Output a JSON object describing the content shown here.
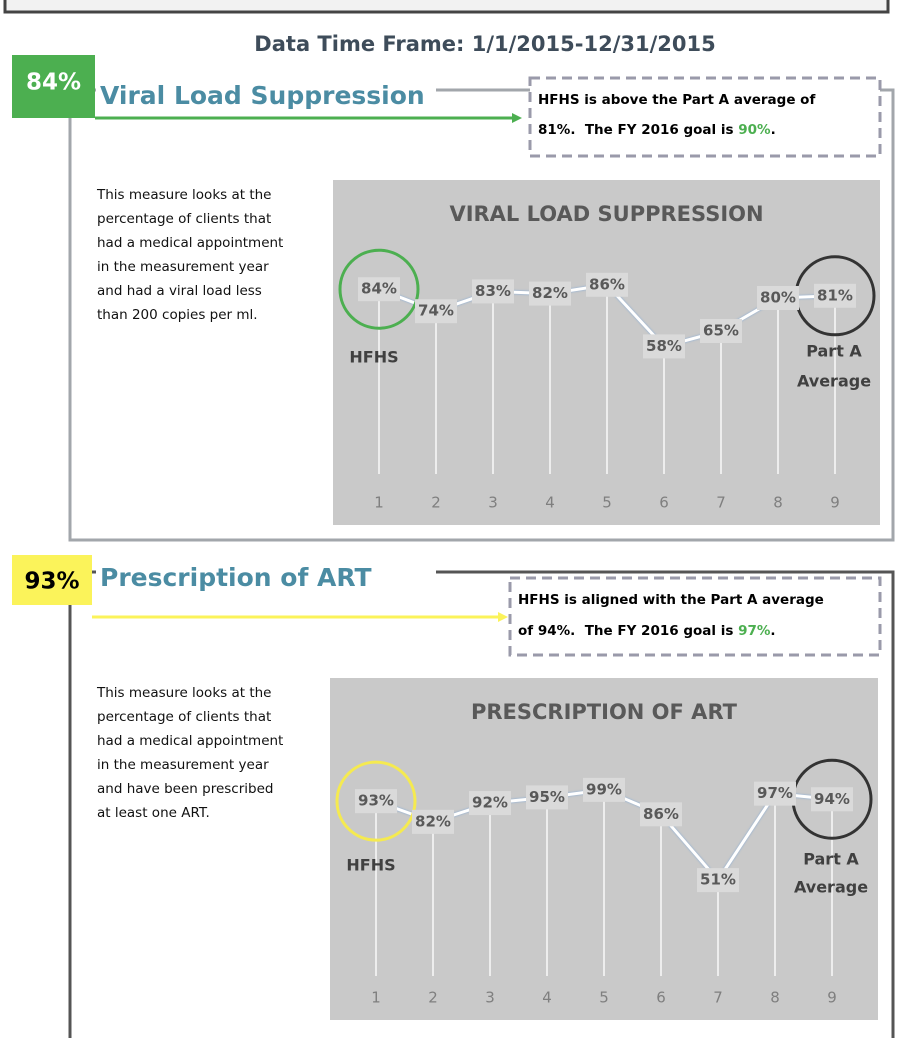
{
  "header": {
    "time_frame": "Data Time Frame: 1/1/2015-12/31/2015"
  },
  "sections": [
    {
      "badge": "84%",
      "badge_color": "#4caf50",
      "badge_text_color": "#ffffff",
      "heading": "Viral Load Suppression",
      "callout": {
        "line1": "HFHS is above the Part A average of",
        "line2": "81%.  The FY 2016 goal is ",
        "goal": "90%",
        "end": "."
      },
      "description": [
        "This measure looks at the",
        "percentage of clients that",
        "had a medical appointment",
        "in the measurement year",
        "and had a viral load less",
        "than 200 copies per ml."
      ],
      "chart": {
        "type": "line",
        "title": "VIRAL LOAD SUPPRESSION",
        "categories": [
          "1",
          "2",
          "3",
          "4",
          "5",
          "6",
          "7",
          "8",
          "9"
        ],
        "values": [
          84,
          74,
          83,
          82,
          86,
          58,
          65,
          80,
          81
        ],
        "value_labels": [
          "84%",
          "74%",
          "83%",
          "82%",
          "86%",
          "58%",
          "65%",
          "80%",
          "81%"
        ],
        "ylim": [
          0,
          100
        ],
        "first_label": "HFHS",
        "last_label": [
          "Part A",
          "Average"
        ],
        "first_circle_color": "#4caf50",
        "last_circle_color": "#333333"
      }
    },
    {
      "badge": "93%",
      "badge_color": "#fbf35a",
      "badge_text_color": "#000000",
      "heading": "Prescription of ART",
      "callout": {
        "line1": "HFHS is aligned with the Part A average",
        "line2": "of 94%.  The FY 2016 goal is ",
        "goal": "97%",
        "end": "."
      },
      "description": [
        "This measure looks at the",
        "percentage of clients that",
        "had a medical appointment",
        "in the measurement year",
        "and have been prescribed",
        "at least one ART."
      ],
      "chart": {
        "type": "line",
        "title": "PRESCRIPTION OF ART",
        "categories": [
          "1",
          "2",
          "3",
          "4",
          "5",
          "6",
          "7",
          "8",
          "9"
        ],
        "values": [
          93,
          82,
          92,
          95,
          99,
          86,
          51,
          97,
          94
        ],
        "value_labels": [
          "93%",
          "82%",
          "92%",
          "95%",
          "99%",
          "86%",
          "51%",
          "97%",
          "94%"
        ],
        "ylim": [
          0,
          100
        ],
        "first_label": "HFHS",
        "last_label": [
          "Part A",
          "Average"
        ],
        "first_circle_color": "#f5ea50",
        "last_circle_color": "#333333"
      }
    }
  ]
}
